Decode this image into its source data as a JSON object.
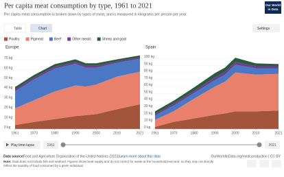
{
  "header": {
    "title": "Per capita meat consumption by type, 1961 to 2021",
    "subtitle": "Per capita meat consumption is broken down by types of meat, and is measured in kilograms per person per year.",
    "logo": [
      "Our World",
      "in Data"
    ]
  },
  "tabs": [
    "Table",
    "Chart"
  ],
  "settings": "Settings",
  "controls": {
    "play": "Play time-lapse",
    "start": "1961",
    "end": "2021"
  },
  "footer": {
    "source_label": "Data source:",
    "source": "Food and Agriculture Organization of the United Nations (2023) –",
    "source_link": "Learn more about this data",
    "url": "OurWorldInData.org/meat-production | CC BY",
    "note_label": "Note:",
    "note": [
      "Data does not include fish and seafood. Figures show meat supply and do not correct for waste at the household level and, so they may not directly",
      "reflect the quantity of food consumed by a given individual."
    ]
  },
  "chart_data": [
    {
      "type": "stacked-area",
      "title": "Europe",
      "x": [
        1961,
        1970,
        1980,
        1990,
        1995,
        2000,
        2010,
        2021
      ],
      "series": [
        {
          "name": "Poultry",
          "color": "#a2553a",
          "values": [
            4,
            7,
            10,
            13,
            14,
            15,
            20,
            25
          ]
        },
        {
          "name": "Pigmeat",
          "color": "#e9806c",
          "values": [
            17,
            22,
            28,
            31,
            29,
            30,
            33,
            33
          ]
        },
        {
          "name": "Beef",
          "color": "#4a78c4",
          "values": [
            17,
            21,
            23,
            22,
            19,
            17,
            14,
            13
          ]
        },
        {
          "name": "Other meats",
          "color": "#6d3e91",
          "values": [
            2,
            2,
            2,
            2,
            2,
            2,
            1.5,
            1.5
          ]
        },
        {
          "name": "Sheep and goat",
          "color": "#2b5a3f",
          "values": [
            2.5,
            2.5,
            2.5,
            2.5,
            2.5,
            2.5,
            2,
            2
          ]
        }
      ],
      "xlim": [
        1961,
        2021
      ],
      "xticks": [
        1961,
        1970,
        1980,
        1990,
        2000,
        2010,
        2021
      ],
      "ylim": [
        0,
        75
      ],
      "yticks": [
        {
          "value": 0,
          "label": "0 kg"
        },
        {
          "value": 10,
          "label": "10 kg"
        },
        {
          "value": 20,
          "label": "20 kg"
        },
        {
          "value": 30,
          "label": "30 kg"
        },
        {
          "value": 40,
          "label": "40 kg"
        },
        {
          "value": 50,
          "label": "50 kg"
        },
        {
          "value": 60,
          "label": "60 kg"
        },
        {
          "value": 70,
          "label": "70 kg"
        }
      ],
      "grid": true
    },
    {
      "type": "stacked-area",
      "title": "Spain",
      "x": [
        1961,
        1970,
        1980,
        1990,
        1995,
        2000,
        2010,
        2021
      ],
      "series": [
        {
          "name": "Poultry",
          "color": "#a2553a",
          "values": [
            3,
            10,
            15,
            20,
            22,
            25,
            25,
            26
          ]
        },
        {
          "name": "Pigmeat",
          "color": "#e9806c",
          "values": [
            10,
            15,
            28,
            40,
            45,
            55,
            52,
            52
          ]
        },
        {
          "name": "Beef",
          "color": "#4a78c4",
          "values": [
            6,
            8,
            8,
            9,
            10,
            11,
            9,
            8
          ]
        },
        {
          "name": "Other meats",
          "color": "#6d3e91",
          "values": [
            2,
            3,
            3,
            4,
            4,
            4,
            3,
            3
          ]
        },
        {
          "name": "Sheep and goat",
          "color": "#2b5a3f",
          "values": [
            4,
            4,
            5,
            6,
            6,
            6,
            4,
            3
          ]
        }
      ],
      "xlim": [
        1961,
        2021
      ],
      "xticks": [
        1961,
        1970,
        1980,
        1990,
        2000,
        2010,
        2021
      ],
      "ylim": [
        0,
        105
      ],
      "yticks": [
        {
          "value": 0,
          "label": "0 kg"
        },
        {
          "value": 10,
          "label": "10 kg"
        },
        {
          "value": 20,
          "label": "20 kg"
        },
        {
          "value": 30,
          "label": "30 kg"
        },
        {
          "value": 40,
          "label": "40 kg"
        },
        {
          "value": 50,
          "label": "50 kg"
        },
        {
          "value": 60,
          "label": "60 kg"
        },
        {
          "value": 70,
          "label": "70 kg"
        },
        {
          "value": 80,
          "label": "80 kg"
        },
        {
          "value": 90,
          "label": "90 kg"
        },
        {
          "value": 100,
          "label": "100 kg"
        }
      ],
      "grid": true
    }
  ]
}
